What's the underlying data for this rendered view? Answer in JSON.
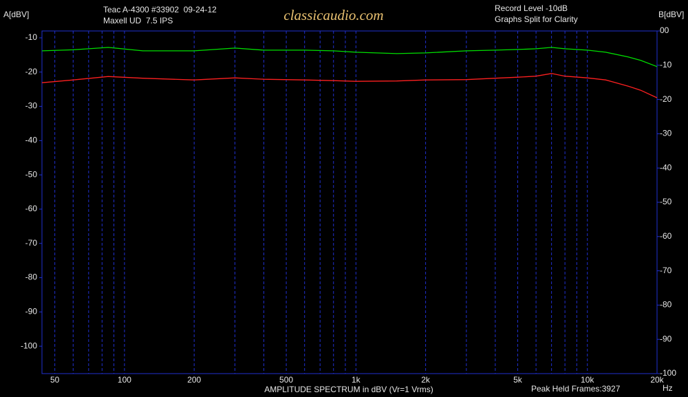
{
  "chart_data": {
    "type": "line",
    "header_left": [
      "Teac A-4300 #33902  09-24-12",
      "Maxell UD  7.5 IPS"
    ],
    "logo": "classicaudio.com",
    "header_right": [
      "Record Level -10dB",
      "Graphs Split for Clarity"
    ],
    "y_label": "A[dBV]",
    "y2_label": "B[dBV]",
    "x_label": "AMPLITUDE SPECTRUM in dBV (Vr=1 Vrms)",
    "footer_note": "Peak Held Frames:3927",
    "x_unit": "Hz",
    "xscale": "log",
    "grid": true,
    "xlim": [
      44,
      20000
    ],
    "xticks": [
      50,
      100,
      200,
      500,
      {
        "value": 1000,
        "label": "1k"
      },
      {
        "value": 2000,
        "label": "2k"
      },
      {
        "value": 5000,
        "label": "5k"
      },
      {
        "value": 10000,
        "label": "10k"
      },
      {
        "value": 20000,
        "label": "20k"
      }
    ],
    "x_minor_ticks": [
      60,
      70,
      80,
      90,
      300,
      400,
      600,
      700,
      800,
      900,
      3000,
      4000,
      6000,
      7000,
      8000,
      9000
    ],
    "ylim": [
      -108,
      -8
    ],
    "yticks": [
      -10,
      -20,
      -30,
      -40,
      -50,
      -60,
      -70,
      -80,
      -90,
      -100
    ],
    "y_color": "#00e000",
    "y2lim": [
      -100,
      0
    ],
    "y2ticks": [
      {
        "value": 0,
        "label": "00"
      },
      -10,
      -20,
      -30,
      -40,
      -50,
      -60,
      -70,
      -80,
      -90,
      -100
    ],
    "y2_color": "#ff2020",
    "grid_color": "#2030d0",
    "x": [
      44,
      60,
      85,
      120,
      200,
      300,
      400,
      600,
      800,
      1000,
      1500,
      2000,
      3000,
      4000,
      5000,
      6000,
      7000,
      8000,
      10000,
      12000,
      15000,
      17000,
      20000
    ],
    "series": [
      {
        "color": "#00e000",
        "axis": "y",
        "values": [
          -13.8,
          -13.5,
          -12.8,
          -13.8,
          -13.8,
          -13,
          -13.6,
          -13.6,
          -13.8,
          -14.2,
          -14.6,
          -14.4,
          -13.8,
          -13.6,
          -13.4,
          -13.2,
          -12.8,
          -13.2,
          -13.6,
          -14.2,
          -15.6,
          -16.6,
          -18.4
        ]
      },
      {
        "color": "#ff2020",
        "axis": "y2",
        "values": [
          -15.1,
          -14.3,
          -13.3,
          -13.8,
          -14.3,
          -13.7,
          -14.1,
          -14.3,
          -14.5,
          -14.7,
          -14.6,
          -14.3,
          -14.2,
          -13.8,
          -13.5,
          -13.2,
          -12.4,
          -13.2,
          -13.7,
          -14.3,
          -16.1,
          -17.3,
          -19.5
        ]
      }
    ]
  }
}
